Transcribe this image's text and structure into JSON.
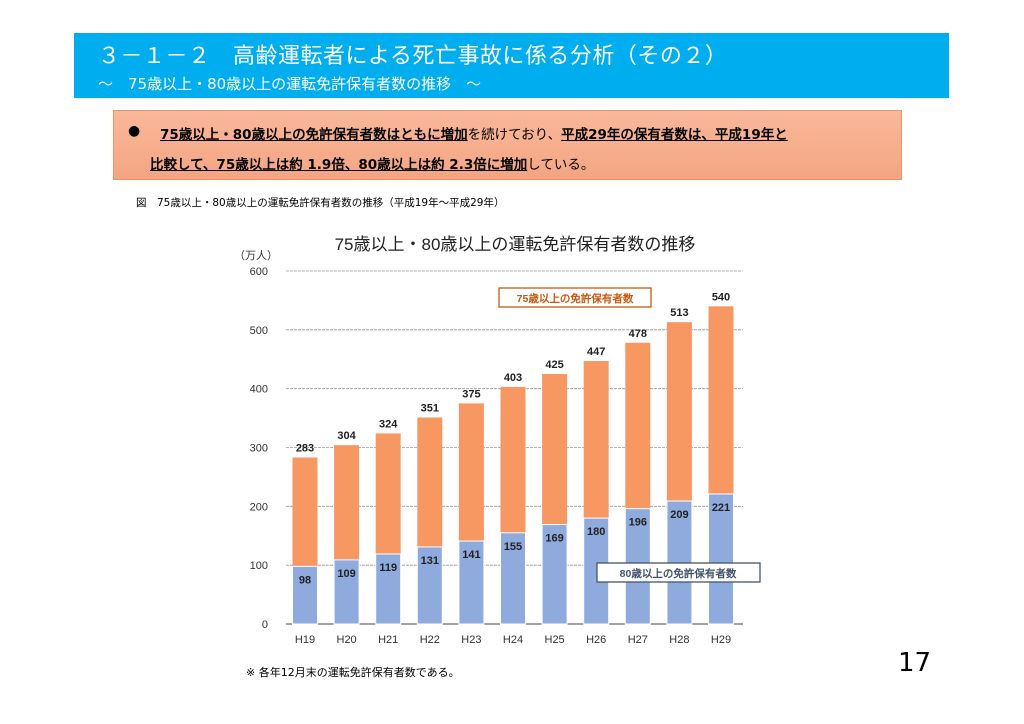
{
  "header": {
    "title": "３－１－２　高齢運転者による死亡事故に係る分析（その２）",
    "subtitle": "～　75歳以上・80歳以上の運転免許保有者数の推移　～",
    "banner_color": "#00AEEF"
  },
  "summary": {
    "bullet": "●",
    "line1_part1": "75歳以上・80歳以上の免許保有者数はともに増加",
    "line1_part2": "を続けており、",
    "line1_part3": "平成29年の保有者数は、平成19年と",
    "line2_part1": "比較して、75歳以上は約 1.9倍、80歳以上は約 2.3倍に増加",
    "line2_part2": "している。",
    "box_color": "#F4A582"
  },
  "figure_caption": "図　75歳以上・80歳以上の運転免許保有者数の推移（平成19年～平成29年）",
  "footnote": "※ 各年12月末の運転免許保有者数である。",
  "page_number": "17",
  "chart_data": {
    "type": "bar",
    "stacked": "overlapping",
    "title": "75歳以上・80歳以上の運転免許保有者数の推移",
    "ylabel": "（万人）",
    "xlabel": "",
    "ylim": [
      0,
      600
    ],
    "yticks": [
      0,
      100,
      200,
      300,
      400,
      500,
      600
    ],
    "grid": true,
    "categories": [
      "H19",
      "H20",
      "H21",
      "H22",
      "H23",
      "H24",
      "H25",
      "H26",
      "H27",
      "H28",
      "H29"
    ],
    "series": [
      {
        "name": "75歳以上の免許保有者数",
        "values": [
          283,
          304,
          324,
          351,
          375,
          403,
          425,
          447,
          478,
          513,
          540
        ],
        "color": "#F79862",
        "label_color": "#C55A11"
      },
      {
        "name": "80歳以上の免許保有者数",
        "values": [
          98,
          109,
          119,
          131,
          141,
          155,
          169,
          180,
          196,
          209,
          221
        ],
        "color": "#8FAADC",
        "label_color": "#44546A"
      }
    ],
    "legend_placement": "inline-labels"
  }
}
